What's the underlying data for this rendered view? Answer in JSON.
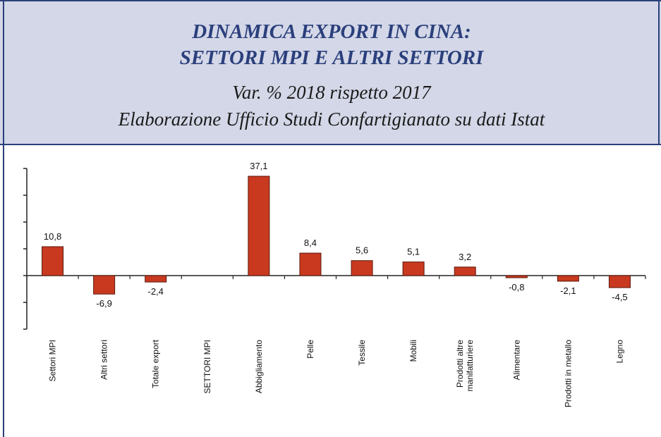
{
  "chart_data": {
    "type": "bar",
    "title": [
      "DINAMICA EXPORT IN CINA:",
      "SETTORI MPI E ALTRI SETTORI"
    ],
    "subtitle": [
      "Var. % 2018 rispetto 2017",
      "Elaborazione Ufficio Studi Confartigianato su dati Istat"
    ],
    "categories": [
      "Settori MPI",
      "Altri settori",
      "Totale export",
      "SETTORI MPI",
      "Abbigliamento",
      "Pelle",
      "Tessile",
      "Mobili",
      "Prodotti altre manifatturiere",
      "Alimentare",
      "Prodotti in metallo",
      "Legno"
    ],
    "values": [
      10.8,
      -6.9,
      -2.4,
      null,
      37.1,
      8.4,
      5.6,
      5.1,
      3.2,
      -0.8,
      -2.1,
      -4.5
    ],
    "value_labels": [
      "10,8",
      "-6,9",
      "-2,4",
      null,
      "37,1",
      "8,4",
      "5,6",
      "5,1",
      "3,2",
      "-0,8",
      "-2,1",
      "-4,5"
    ],
    "color": "#c8391f",
    "ylim": [
      -20,
      40
    ],
    "yticks": [
      -20,
      -10,
      0,
      10,
      20,
      30,
      40
    ]
  }
}
